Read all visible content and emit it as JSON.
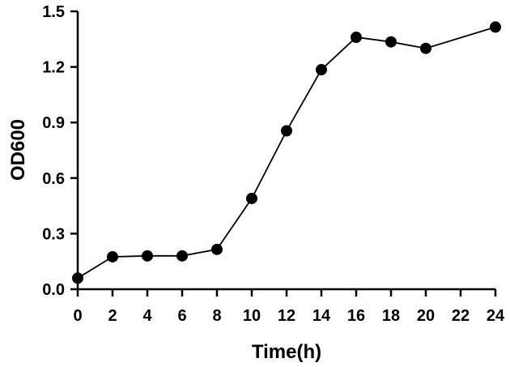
{
  "chart_data": {
    "type": "line",
    "title": "",
    "xlabel": "Time(h)",
    "ylabel": "OD600",
    "xlim": [
      0,
      24
    ],
    "ylim": [
      0.0,
      1.5
    ],
    "x_ticks": [
      "0",
      "2",
      "4",
      "6",
      "8",
      "10",
      "12",
      "14",
      "16",
      "18",
      "20",
      "22",
      "24"
    ],
    "y_ticks": [
      "0.0",
      "0.3",
      "0.6",
      "0.9",
      "1.2",
      "1.5"
    ],
    "grid": false,
    "legend": "none",
    "series": [
      {
        "x": [
          0,
          2,
          4,
          6,
          8,
          10,
          12,
          14,
          16,
          18,
          20,
          24
        ],
        "y": [
          0.06,
          0.175,
          0.18,
          0.18,
          0.215,
          0.49,
          0.855,
          1.185,
          1.36,
          1.335,
          1.3,
          1.415
        ]
      }
    ],
    "colors": {
      "line": "#000000",
      "marker": "#000000",
      "axis": "#000000"
    }
  }
}
